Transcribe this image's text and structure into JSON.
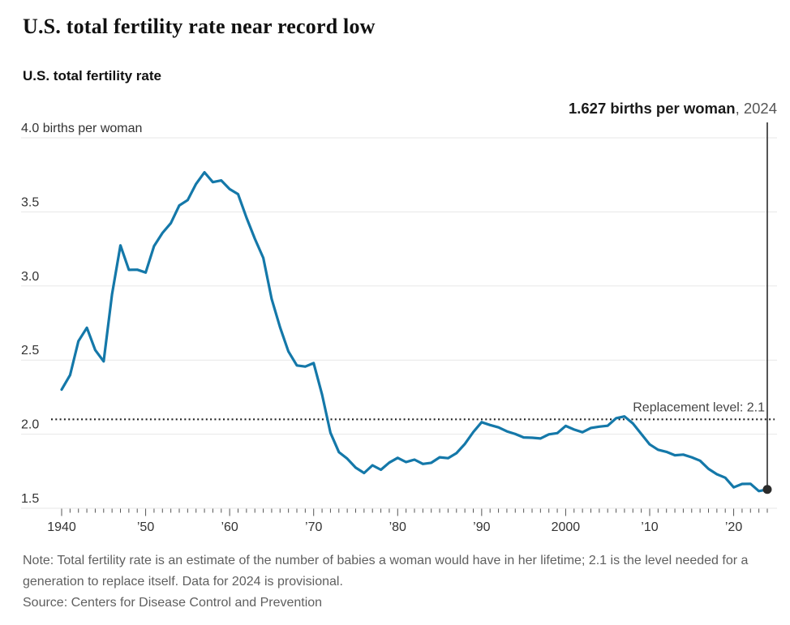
{
  "header": {
    "title": "U.S. total fertility rate near record low",
    "subtitle": "U.S. total fertility rate"
  },
  "annotation": {
    "value_label": "1.627 births per woman",
    "year_label": ", 2024"
  },
  "replacement_label": "Replacement level: 2.1",
  "footer": {
    "note": "Note: Total fertility rate is an estimate of the number of babies a woman would have in her lifetime; 2.1 is the level needed for a generation to replace itself. Data for 2024 is provisional.",
    "source": "Source: Centers for Disease Control and Prevention"
  },
  "colors": {
    "line": "#1478a9",
    "grid": "#e7e7e7",
    "tick": "#555555",
    "axis_text": "#333333",
    "replacement_line": "#222222",
    "replacement_text": "#444444",
    "callout": "#2b2b2b",
    "marker": "#2b2b2b",
    "dark_text": "#1a1a1a",
    "annotation_year": "#555555",
    "muted_text": "#5f5f5f"
  },
  "chart_data": {
    "type": "line",
    "title": "U.S. total fertility rate",
    "xlabel": "",
    "ylabel": "births per woman",
    "xlim": [
      1940,
      2024
    ],
    "ylim": [
      1.5,
      4.0
    ],
    "grid": "horizontal",
    "replacement_level": 2.1,
    "y_ticks": [
      {
        "value": 1.5,
        "label": "1.5"
      },
      {
        "value": 2.0,
        "label": "2.0"
      },
      {
        "value": 2.5,
        "label": "2.5"
      },
      {
        "value": 3.0,
        "label": "3.0"
      },
      {
        "value": 3.5,
        "label": "3.5"
      },
      {
        "value": 4.0,
        "label": "4.0 births per woman"
      }
    ],
    "x_ticks": [
      {
        "year": 1940,
        "label": "1940"
      },
      {
        "year": 1950,
        "label": "’50"
      },
      {
        "year": 1960,
        "label": "’60"
      },
      {
        "year": 1970,
        "label": "’70"
      },
      {
        "year": 1980,
        "label": "’80"
      },
      {
        "year": 1990,
        "label": "’90"
      },
      {
        "year": 2000,
        "label": "2000"
      },
      {
        "year": 2010,
        "label": "’10"
      },
      {
        "year": 2020,
        "label": "’20"
      }
    ],
    "series": [
      {
        "name": "U.S. total fertility rate",
        "x": [
          1940,
          1941,
          1942,
          1943,
          1944,
          1945,
          1946,
          1947,
          1948,
          1949,
          1950,
          1951,
          1952,
          1953,
          1954,
          1955,
          1956,
          1957,
          1958,
          1959,
          1960,
          1961,
          1962,
          1963,
          1964,
          1965,
          1966,
          1967,
          1968,
          1969,
          1970,
          1971,
          1972,
          1973,
          1974,
          1975,
          1976,
          1977,
          1978,
          1979,
          1980,
          1981,
          1982,
          1983,
          1984,
          1985,
          1986,
          1987,
          1988,
          1989,
          1990,
          1991,
          1992,
          1993,
          1994,
          1995,
          1996,
          1997,
          1998,
          1999,
          2000,
          2001,
          2002,
          2003,
          2004,
          2005,
          2006,
          2007,
          2008,
          2009,
          2010,
          2011,
          2012,
          2013,
          2014,
          2015,
          2016,
          2017,
          2018,
          2019,
          2020,
          2021,
          2022,
          2023,
          2024
        ],
        "values": [
          2.301,
          2.399,
          2.628,
          2.718,
          2.568,
          2.491,
          2.943,
          3.274,
          3.109,
          3.11,
          3.091,
          3.269,
          3.358,
          3.424,
          3.543,
          3.58,
          3.689,
          3.767,
          3.701,
          3.712,
          3.654,
          3.62,
          3.461,
          3.319,
          3.19,
          2.913,
          2.721,
          2.558,
          2.464,
          2.456,
          2.48,
          2.267,
          2.01,
          1.879,
          1.835,
          1.774,
          1.738,
          1.79,
          1.76,
          1.808,
          1.84,
          1.812,
          1.828,
          1.799,
          1.807,
          1.844,
          1.838,
          1.872,
          1.934,
          2.014,
          2.081,
          2.062,
          2.046,
          2.019,
          2.001,
          1.978,
          1.976,
          1.971,
          1.999,
          2.007,
          2.056,
          2.031,
          2.013,
          2.042,
          2.051,
          2.057,
          2.108,
          2.12,
          2.072,
          2.002,
          1.931,
          1.895,
          1.881,
          1.858,
          1.862,
          1.844,
          1.821,
          1.766,
          1.73,
          1.706,
          1.641,
          1.664,
          1.665,
          1.616,
          1.627
        ]
      }
    ],
    "end_point": {
      "year": 2024,
      "value": 1.627
    }
  }
}
